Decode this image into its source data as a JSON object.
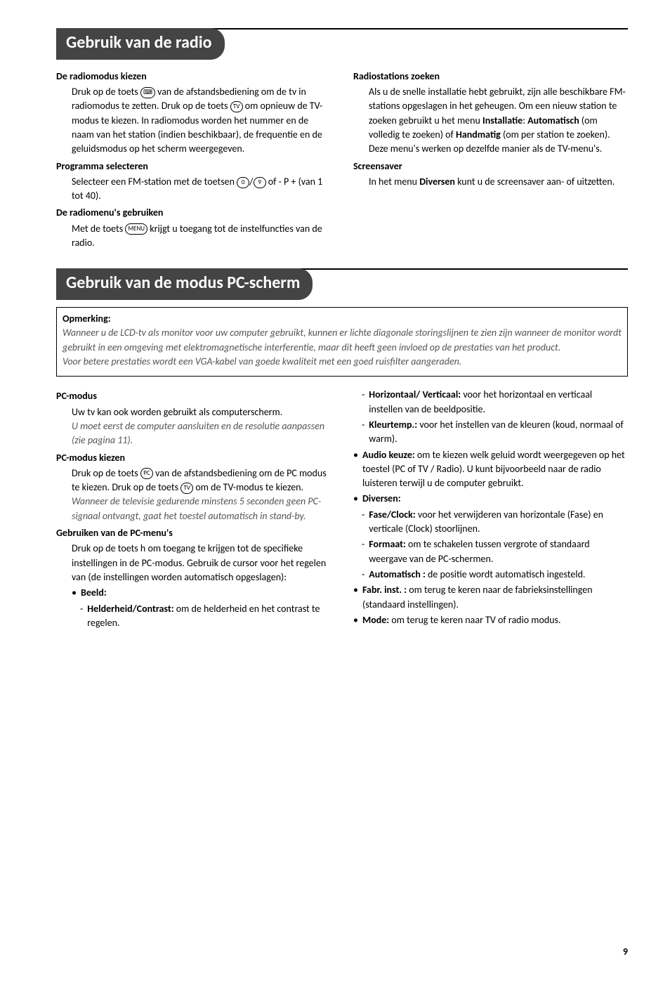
{
  "section1": {
    "title": "Gebruik van de radio",
    "left": {
      "h1": "De radiomodus kiezen",
      "p1a": "Druk op de toets ",
      "icon1": "⌨",
      "p1b": " van de afstandsbediening om de tv in radiomodus te zetten. Druk op de toets ",
      "icon_tv": "TV",
      "p1c": " om opnieuw de TV-modus te kiezen. In radiomodus worden het nummer en de naam van het station (indien beschikbaar), de frequentie en de geluidsmodus op het scherm weergegeven.",
      "h2": "Programma selecteren",
      "p2a": "Selecteer een FM-station met de toetsen ",
      "icon_0": "0",
      "icon_9": "9",
      "p2b": " of - P + (van 1 tot 40).",
      "h3": "De radiomenu's gebruiken",
      "p3a": "Met de toets ",
      "icon_menu": "MENU",
      "p3b": " krijgt u toegang tot de instelfuncties van de radio."
    },
    "right": {
      "h1": "Radiostations zoeken",
      "p1a": "Als u de snelle installatie hebt gebruikt, zijn alle beschikbare FM-stations opgeslagen in het geheugen. Om een nieuw station te zoeken gebruikt u het menu ",
      "b1": "Installatie",
      "p1b": ": ",
      "b2": "Automatisch",
      "p1c": " (om volledig te zoeken) of ",
      "b3": "Handmatig",
      "p1d": " (om per station te zoeken). Deze menu's werken op dezelfde manier als de TV-menu's.",
      "h2": "Screensaver",
      "p2a": "In het menu ",
      "b4": "Diversen",
      "p2b": " kunt u de screensaver aan- of uitzetten."
    }
  },
  "section2": {
    "title": "Gebruik van de modus PC-scherm",
    "note": {
      "title": "Opmerking:",
      "l1": "Wanneer u de LCD-tv als monitor voor uw computer gebruikt, kunnen er lichte diagonale storingslijnen te zien zijn wanneer de monitor wordt gebruikt in een omgeving met elektromagnetische interferentie, maar dit heeft geen invloed op de prestaties van het product.",
      "l2": "Voor betere prestaties wordt een VGA-kabel van goede kwaliteit met een goed ruisfilter aangeraden."
    },
    "left": {
      "h1": "PC-modus",
      "p1": "Uw tv kan ook worden gebruikt als computerscherm.",
      "p1i": "U moet eerst de computer aansluiten en de resolutie aanpassen (zie pagina 11).",
      "h2": "PC-modus kiezen",
      "p2a": "Druk op de toets ",
      "icon_pc": "PC",
      "p2b": " van de afstandsbediening om de PC modus te kiezen. Druk op de toets ",
      "icon_tv": "TV",
      "p2c": " om de TV-modus te kiezen.",
      "p2i": "Wanneer de televisie gedurende minstens 5 seconden geen PC-signaal ontvangt, gaat het toestel automatisch in stand-by.",
      "h3": "Gebruiken van de PC-menu's",
      "p3": "Druk op de toets h om toegang te krijgen tot de specifieke instellingen in de PC-modus. Gebruik de cursor voor het regelen van (de instellingen worden automatisch opgeslagen):",
      "bullet1": "Beeld:",
      "sub1a": "Helderheid/Contrast:",
      "sub1b": " om de helderheid en het contrast te regelen."
    },
    "right": {
      "sub_hv": "Horizontaal/ Verticaal:",
      "sub_hv_t": " voor het horizontaal en verticaal instellen van de beeldpositie.",
      "sub_kt": "Kleurtemp.:",
      "sub_kt_t": " voor het instellen van de kleuren (koud, normaal of warm).",
      "b_audio": "Audio keuze:",
      "b_audio_t": " om te kiezen welk geluid wordt weergegeven op het toestel (PC of TV / Radio). U kunt bijvoorbeeld naar de radio luisteren terwijl u de computer gebruikt.",
      "b_div": "Diversen:",
      "sub_fc": "Fase/Clock:",
      "sub_fc_t": " voor het verwijderen van horizontale (Fase) en verticale (Clock) stoorlijnen.",
      "sub_fm": "Formaat:",
      "sub_fm_t": " om te schakelen tussen vergrote of standaard weergave van de PC-schermen.",
      "sub_au": "Automatisch :",
      "sub_au_t": " de positie wordt automatisch ingesteld.",
      "b_fabr": "Fabr. inst. :",
      "b_fabr_t": " om terug te keren naar de fabrieksinstellingen (standaard instellingen).",
      "b_mode": "Mode:",
      "b_mode_t": " om terug te keren naar TV of radio modus."
    }
  },
  "page": "9"
}
